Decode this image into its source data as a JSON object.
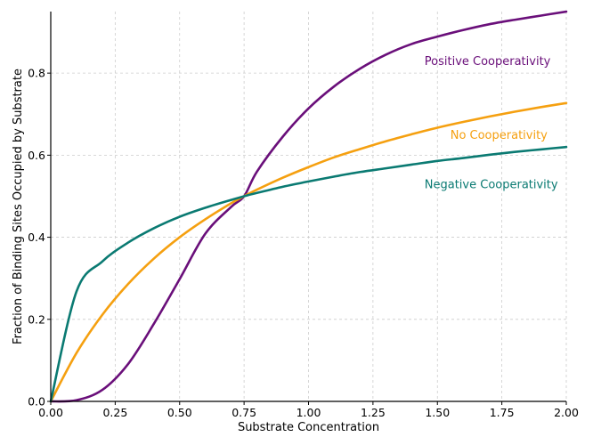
{
  "chart_data": {
    "type": "line",
    "title": "",
    "xlabel": "Substrate Concentration",
    "ylabel": "Fraction of Binding Sites Occupied by Substrate",
    "xlim": [
      0,
      2
    ],
    "ylim": [
      0,
      0.95
    ],
    "grid": true,
    "x_ticks": [
      "0.00",
      "0.25",
      "0.50",
      "0.75",
      "1.00",
      "1.25",
      "1.50",
      "1.75",
      "2.00"
    ],
    "y_ticks": [
      "0.0",
      "0.2",
      "0.4",
      "0.6",
      "0.8"
    ],
    "x": [
      0.0,
      0.1,
      0.2,
      0.3,
      0.4,
      0.5,
      0.6,
      0.7,
      0.75,
      0.8,
      0.9,
      1.0,
      1.1,
      1.2,
      1.3,
      1.4,
      1.5,
      1.6,
      1.7,
      1.8,
      1.9,
      2.0
    ],
    "series": [
      {
        "name": "Positive Cooperativity",
        "color": "#6a0f7a",
        "values": [
          0.0,
          0.003,
          0.028,
          0.091,
          0.189,
          0.298,
          0.409,
          0.474,
          0.5,
          0.56,
          0.645,
          0.714,
          0.768,
          0.811,
          0.845,
          0.871,
          0.889,
          0.905,
          0.919,
          0.93,
          0.94,
          0.95
        ]
      },
      {
        "name": "No Cooperativity",
        "color": "#f5a010",
        "values": [
          0.0,
          0.118,
          0.211,
          0.286,
          0.348,
          0.4,
          0.444,
          0.483,
          0.5,
          0.516,
          0.545,
          0.571,
          0.595,
          0.615,
          0.634,
          0.651,
          0.667,
          0.681,
          0.694,
          0.706,
          0.717,
          0.727
        ]
      },
      {
        "name": "Negative Cooperativity",
        "color": "#0a7a72",
        "values": [
          0.0,
          0.268,
          0.341,
          0.387,
          0.422,
          0.45,
          0.472,
          0.491,
          0.5,
          0.508,
          0.523,
          0.536,
          0.548,
          0.559,
          0.568,
          0.577,
          0.586,
          0.593,
          0.601,
          0.608,
          0.614,
          0.62
        ]
      }
    ],
    "annotations": [
      {
        "text": "Positive Cooperativity",
        "color": "#6a0f7a",
        "x": 1.45,
        "y": 0.82
      },
      {
        "text": "No Cooperativity",
        "color": "#f5a010",
        "x": 1.55,
        "y": 0.64
      },
      {
        "text": "Negative Cooperativity",
        "color": "#0a7a72",
        "x": 1.45,
        "y": 0.52
      }
    ]
  }
}
